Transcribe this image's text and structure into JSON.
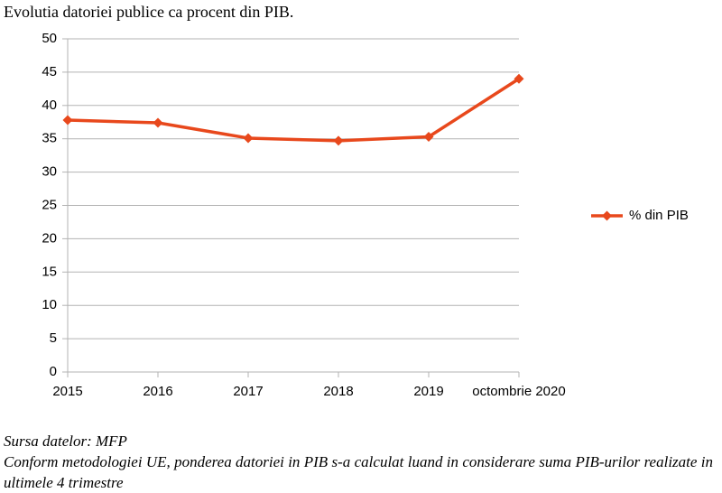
{
  "chart_data": {
    "type": "line",
    "title": "Evolutia datoriei publice ca procent din PIB.",
    "categories": [
      "2015",
      "2016",
      "2017",
      "2018",
      "2019",
      "octombrie 2020"
    ],
    "series": [
      {
        "name": "% din PIB",
        "color": "#e8481c",
        "values": [
          37.8,
          37.4,
          35.1,
          34.7,
          35.3,
          44.0
        ]
      }
    ],
    "ylim": [
      0,
      50
    ],
    "yticks": [
      0,
      5,
      10,
      15,
      20,
      25,
      30,
      35,
      40,
      45,
      50
    ],
    "grid": true,
    "legend": "right"
  },
  "source": "Sursa datelor: MFP",
  "note": "Conform metodologiei UE, ponderea datoriei in PIB s-a calculat luand in considerare suma PIB-urilor realizate in ultimele 4 trimestre"
}
